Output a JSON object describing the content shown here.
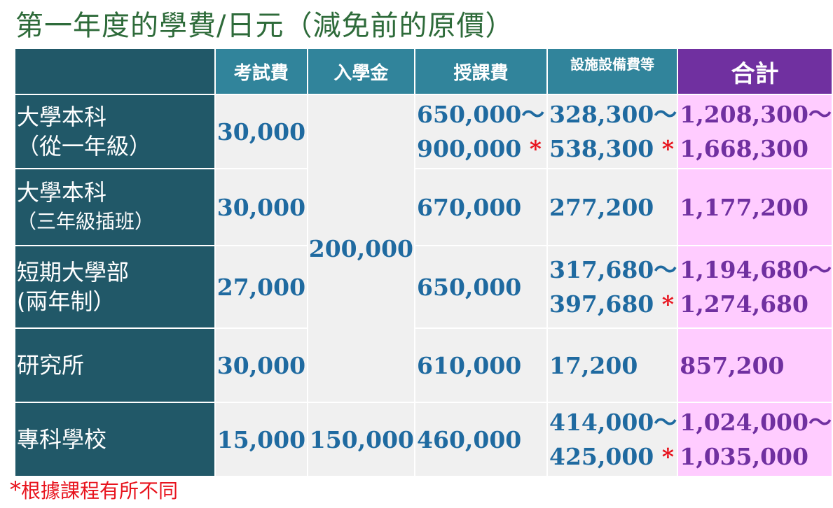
{
  "title": "第一年度的學費/日元（減免前的原價）",
  "headers": {
    "exam_fee": "考試費",
    "admission_fee": "入學金",
    "tuition": "授課費",
    "facility_fee": "設施設備費等",
    "total": "合計"
  },
  "star_mark": "*",
  "rows": {
    "university": {
      "label_line1": "大學本科",
      "label_line2": "（從一年級）",
      "exam_fee": "30,000",
      "tuition_line1": "650,000～",
      "tuition_line2": "900,000",
      "facility_line1": "328,300～",
      "facility_line2": "538,300",
      "total_line1": "1,208,300～",
      "total_line2": "1,668,300"
    },
    "university_transfer": {
      "label_line1": "大學本科",
      "label_line2": "（三年級插班）",
      "exam_fee": "30,000",
      "tuition": "670,000",
      "facility": "277,200",
      "total": "1,177,200"
    },
    "junior_college": {
      "label_line1": "短期大學部",
      "label_line2": "(兩年制）",
      "exam_fee": "27,000",
      "tuition": "650,000",
      "facility_line1": "317,680～",
      "facility_line2": "397,680",
      "total_line1": "1,194,680～",
      "total_line2": "1,274,680"
    },
    "graduate_school": {
      "label": "研究所",
      "exam_fee": "30,000",
      "tuition": "610,000",
      "facility": "17,200",
      "total": "857,200"
    },
    "vocational_school": {
      "label": "專科學校",
      "exam_fee": "15,000",
      "admission_fee": "150,000",
      "tuition": "460,000",
      "facility_line1": "414,000～",
      "facility_line2": "425,000",
      "total_line1": "1,024,000～",
      "total_line2": "1,035,000"
    }
  },
  "shared_admission_fee": "200,000",
  "footnote": "根據課程有所不同"
}
